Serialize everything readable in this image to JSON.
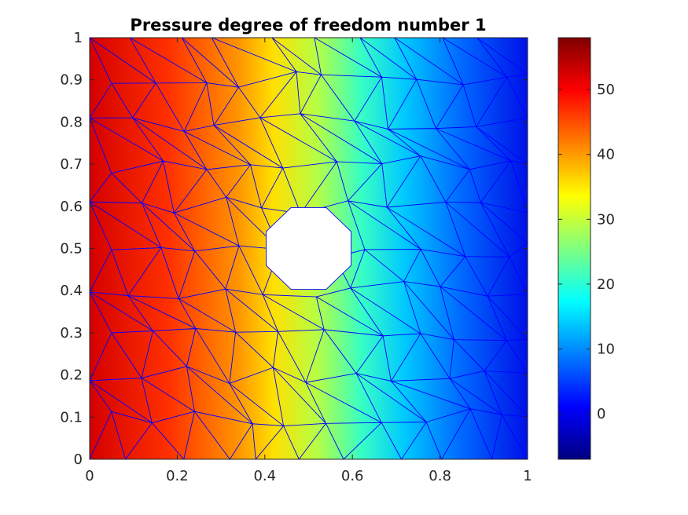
{
  "chart_data": {
    "type": "heatmap",
    "title": "Pressure degree of freedom number 1",
    "xlabel": "",
    "ylabel": "",
    "xlim": [
      0,
      1
    ],
    "ylim": [
      0,
      1
    ],
    "x_ticks": [
      "0",
      "0.2",
      "0.4",
      "0.6",
      "0.8",
      "1"
    ],
    "y_ticks": [
      "0",
      "0.1",
      "0.2",
      "0.3",
      "0.4",
      "0.5",
      "0.6",
      "0.7",
      "0.8",
      "0.9",
      "1"
    ],
    "colorbar": {
      "limits": [
        -7,
        58
      ],
      "ticks": [
        "0",
        "10",
        "20",
        "30",
        "40",
        "50"
      ],
      "tick_values": [
        0,
        10,
        20,
        30,
        40,
        50
      ],
      "colormap": "jet"
    },
    "field": {
      "description_of_trend": "values decrease from left edge to right edge",
      "left_edge_value": 56,
      "right_edge_value": 0,
      "hole": {
        "center": [
          0.5,
          0.5
        ],
        "radius": 0.105,
        "sides": 8
      }
    },
    "mesh_edge_color": "#0000ff",
    "grid": false
  }
}
